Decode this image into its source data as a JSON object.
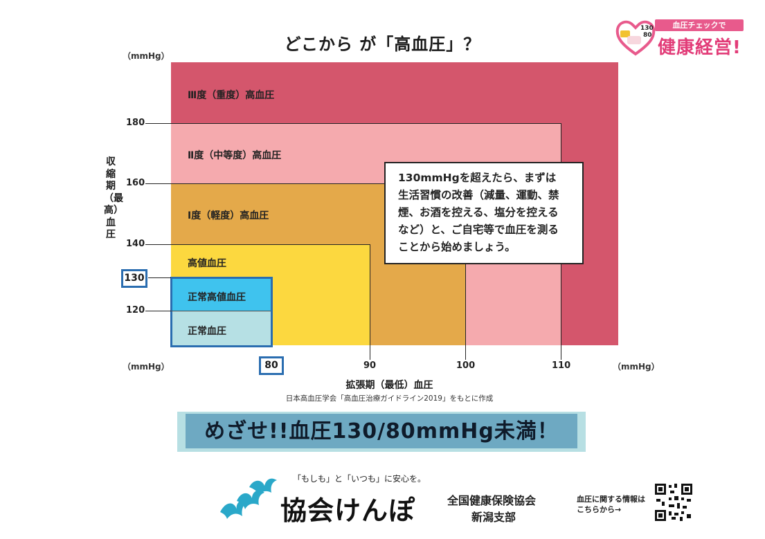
{
  "title": "どこから が「高血圧」？",
  "units": {
    "y_top": "（mmHg）",
    "x_left": "（mmHg）",
    "x_right": "（mmHg）"
  },
  "y_axis_label": "収縮期（最高）血圧",
  "x_axis_label": "拡張期（最低）血圧",
  "source": "日本高血圧学会「高血圧治療ガイドライン2019」をもとに作成",
  "zones": [
    {
      "label": "Ⅲ度（重度）高血圧",
      "color": "#d4566c"
    },
    {
      "label": "Ⅱ度（中等度）高血圧",
      "color": "#f5aaae"
    },
    {
      "label": "Ⅰ度（軽度）高血圧",
      "color": "#e4a94a"
    },
    {
      "label": "高値血圧",
      "color": "#fcd83f"
    },
    {
      "label": "正常高値血圧",
      "color": "#3fc3ee"
    },
    {
      "label": "正常血圧",
      "color": "#b6e0e4"
    }
  ],
  "y_ticks": [
    "180",
    "160",
    "140",
    "130",
    "120"
  ],
  "x_ticks": [
    "80",
    "90",
    "100",
    "110"
  ],
  "note": {
    "lines": [
      "130mmHgを超えたら、まずは",
      "生活習慣の改善（減量、運動、禁",
      "煙、お酒を控える、塩分を控える",
      "など）と、ご自宅等で血圧を測る",
      "ことから始めましょう。"
    ]
  },
  "banner": "めざせ!!血圧130/80mmHg未満！",
  "footer": {
    "tagline": "「もしも」と「いつも」に安心を。",
    "brand": "協会けんぽ",
    "org_line1": "全国健康保険協会",
    "org_line2": "新潟支部",
    "qr_text_line1": "血圧に関する情報は",
    "qr_text_line2": "こちらから→"
  },
  "badge": {
    "heart_text_top": "130",
    "heart_text_bottom": "80",
    "ribbon": "血圧チェックで",
    "headline": "健康経営!"
  }
}
